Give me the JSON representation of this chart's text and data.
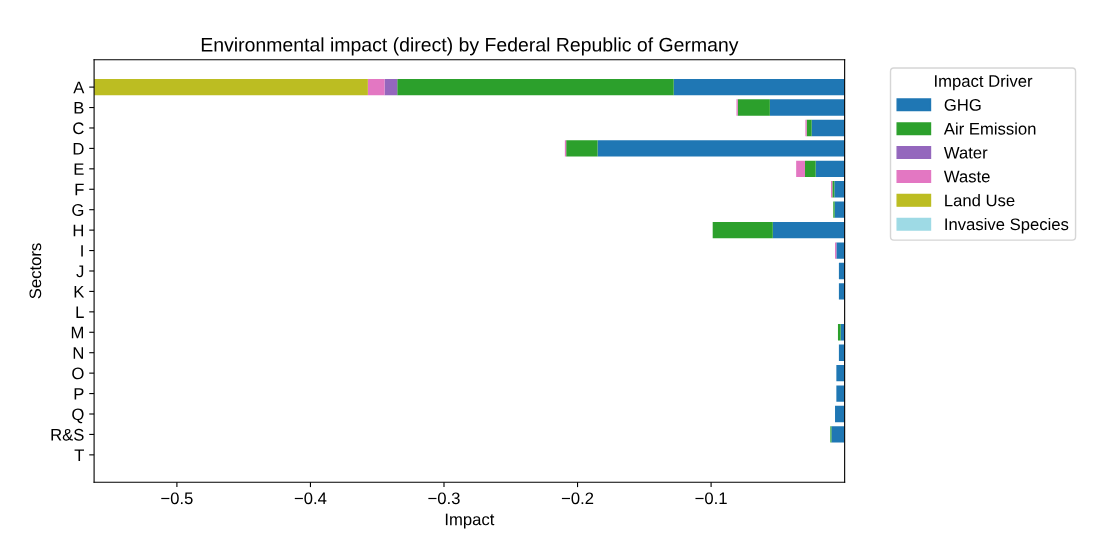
{
  "chart_data": {
    "type": "bar",
    "orientation": "horizontal",
    "stacked": true,
    "title": "Environmental impact (direct) by Federal Republic of Germany",
    "xlabel": "Impact",
    "ylabel": "Sectors",
    "legend_title": "Impact Driver",
    "legend": "right",
    "grid": false,
    "categories": [
      "A",
      "B",
      "C",
      "D",
      "E",
      "F",
      "G",
      "H",
      "I",
      "J",
      "K",
      "L",
      "M",
      "N",
      "O",
      "P",
      "Q",
      "R&S",
      "T"
    ],
    "xlim": [
      -0.562,
      0
    ],
    "xticks": [
      {
        "value": -0.5,
        "label": "−0.5"
      },
      {
        "value": -0.4,
        "label": "−0.4"
      },
      {
        "value": -0.3,
        "label": "−0.3"
      },
      {
        "value": -0.2,
        "label": "−0.2"
      },
      {
        "value": -0.1,
        "label": "−0.1"
      }
    ],
    "series": [
      {
        "name": "GHG",
        "color": "#1f77b4",
        "values": [
          -0.128,
          -0.056,
          -0.0247,
          -0.185,
          -0.0217,
          -0.0077,
          -0.0075,
          -0.0538,
          -0.0062,
          -0.0043,
          -0.0043,
          0,
          -0.003,
          -0.0043,
          -0.0062,
          -0.0062,
          -0.0072,
          -0.0099,
          0
        ]
      },
      {
        "name": "Air Emission",
        "color": "#2ca02c",
        "values": [
          -0.207,
          -0.024,
          -0.0037,
          -0.0235,
          -0.008,
          -0.0015,
          -0.001,
          -0.045,
          0,
          0,
          0,
          0,
          -0.002,
          0,
          0,
          0,
          0,
          -0.0008,
          0
        ]
      },
      {
        "name": "Water",
        "color": "#9467bd",
        "values": [
          -0.0095,
          0,
          0,
          0,
          0,
          0,
          0,
          0,
          0,
          0,
          0,
          0,
          0,
          0,
          0,
          0,
          0,
          0,
          0
        ]
      },
      {
        "name": "Waste",
        "color": "#e377c2",
        "values": [
          -0.0125,
          -0.001,
          -0.001,
          -0.001,
          -0.0066,
          -0.001,
          0,
          0,
          -0.001,
          0,
          0,
          0,
          0,
          0,
          0,
          0,
          0,
          0,
          0
        ]
      },
      {
        "name": "Land Use",
        "color": "#bcbd22",
        "values": [
          -0.205,
          0,
          0,
          0,
          0,
          0,
          0,
          0,
          0,
          0,
          0,
          0,
          0,
          0,
          0,
          0,
          0,
          0,
          0
        ]
      },
      {
        "name": "Invasive Species",
        "color": "#9edae5",
        "values": [
          0,
          0,
          0,
          0,
          0,
          0,
          0,
          0,
          0,
          0,
          0,
          0,
          0,
          0,
          0,
          0,
          0,
          0,
          0
        ]
      }
    ]
  }
}
